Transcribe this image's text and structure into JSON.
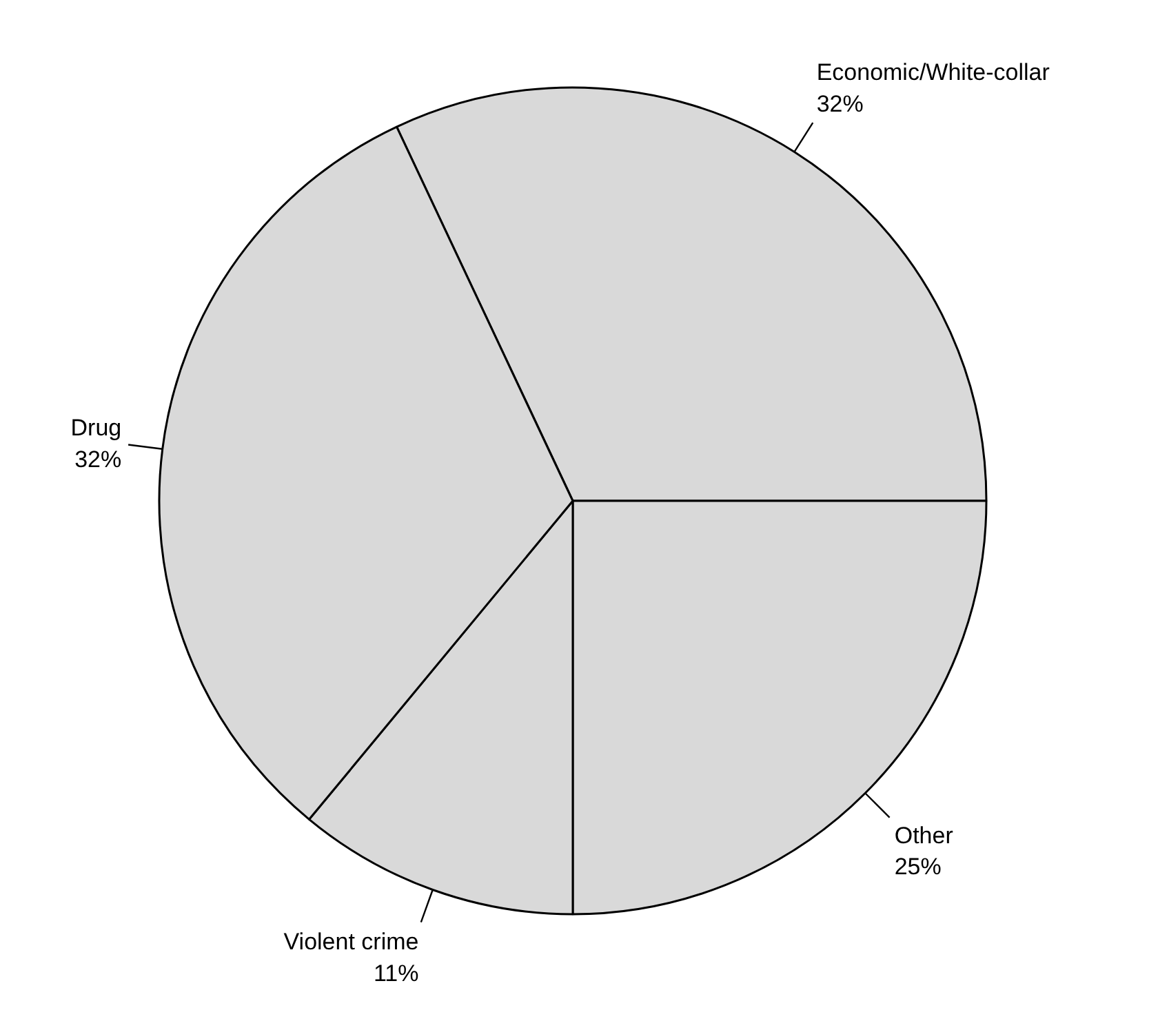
{
  "chart_data": {
    "type": "pie",
    "categories": [
      "Economic/White-collar",
      "Other",
      "Violent crime",
      "Drug"
    ],
    "values": [
      32,
      25,
      11,
      32
    ],
    "value_labels": [
      "32%",
      "25%",
      "11%",
      "32%"
    ],
    "colors": [
      "#d9d9d9",
      "#d9d9d9",
      "#d9d9d9",
      "#d9d9d9"
    ]
  }
}
